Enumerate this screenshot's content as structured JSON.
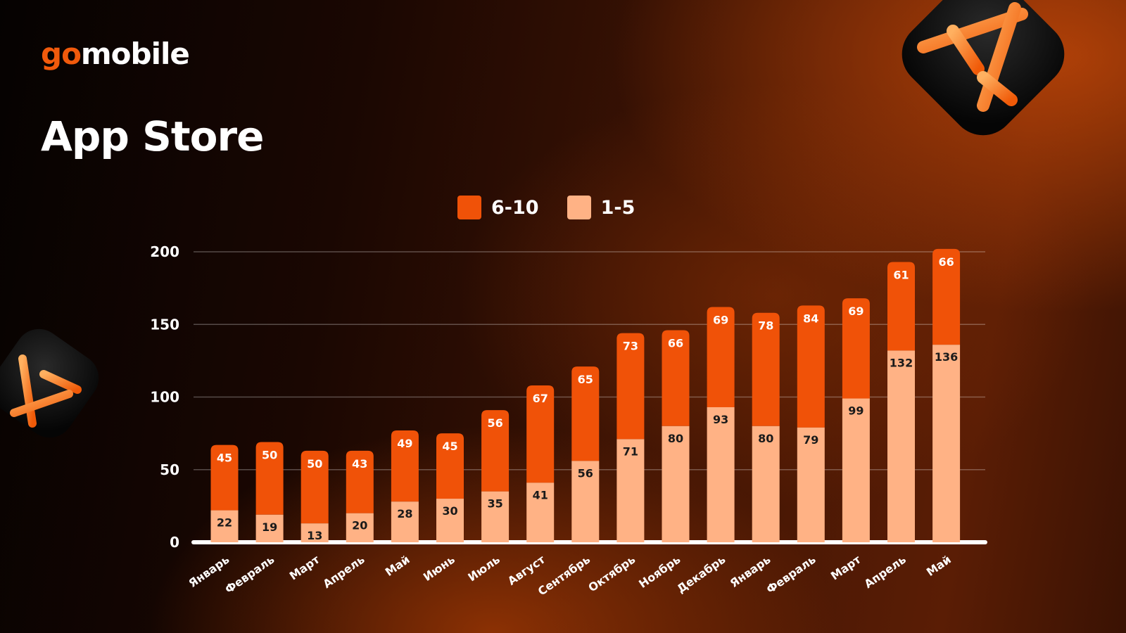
{
  "brand": {
    "prefix": "go",
    "suffix": "mobile"
  },
  "page_title": "App Store",
  "colors": {
    "accent": "#f05208",
    "light": "#ffb285",
    "text_dark": "#1a1a1a",
    "axis": "#ffffff"
  },
  "icons": [
    "app-store-badge-icon",
    "app-store-badge-icon"
  ],
  "chart_data": {
    "type": "bar",
    "stacked": true,
    "categories": [
      "Январь",
      "Февраль",
      "Март",
      "Апрель",
      "Май",
      "Июнь",
      "Июль",
      "Август",
      "Сентябрь",
      "Октябрь",
      "Ноябрь",
      "Декабрь",
      "Январь",
      "Февраль",
      "Март",
      "Апрель",
      "Май"
    ],
    "series": [
      {
        "name": "1-5",
        "color": "#ffb285",
        "values": [
          22,
          19,
          13,
          20,
          28,
          30,
          35,
          41,
          56,
          71,
          80,
          93,
          80,
          79,
          99,
          132,
          136
        ]
      },
      {
        "name": "6-10",
        "color": "#f05208",
        "values": [
          45,
          50,
          50,
          43,
          49,
          45,
          56,
          67,
          65,
          73,
          66,
          69,
          78,
          84,
          69,
          61,
          66
        ]
      }
    ],
    "legend_order": [
      "6-10",
      "1-5"
    ],
    "legend_position": "top-center",
    "ylim": [
      0,
      200
    ],
    "yticks": [
      0,
      50,
      100,
      150,
      200
    ],
    "grid": true,
    "title": "",
    "xlabel": "",
    "ylabel": ""
  }
}
